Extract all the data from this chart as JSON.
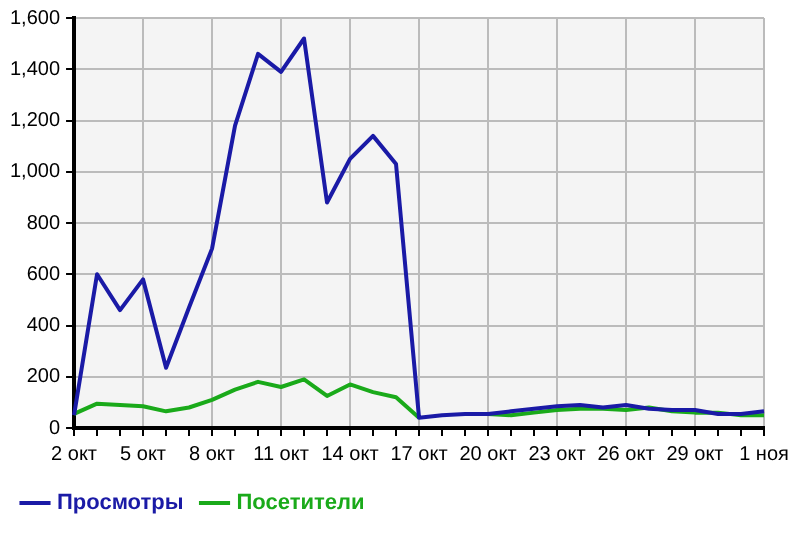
{
  "chart_data": {
    "type": "line",
    "categories": [
      "2 окт",
      null,
      null,
      "5 окт",
      null,
      null,
      "8 окт",
      null,
      null,
      "11 окт",
      null,
      null,
      "14 окт",
      null,
      null,
      "17 окт",
      null,
      null,
      "20 окт",
      null,
      null,
      "23 окт",
      null,
      null,
      "26 окт",
      null,
      null,
      "29 окт",
      null,
      null,
      "1 ноя"
    ],
    "series": [
      {
        "name": "Просмотры",
        "color": "#1a1aa6",
        "values": [
          50,
          600,
          460,
          580,
          235,
          470,
          700,
          1180,
          1460,
          1390,
          1520,
          880,
          1050,
          1140,
          1030,
          40,
          50,
          55,
          55,
          65,
          75,
          85,
          90,
          80,
          90,
          75,
          70,
          70,
          55,
          55,
          65
        ]
      },
      {
        "name": "Посетители",
        "color": "#1aaa1a",
        "values": [
          55,
          95,
          90,
          85,
          65,
          80,
          110,
          150,
          180,
          160,
          190,
          125,
          170,
          140,
          120,
          40,
          null,
          null,
          55,
          50,
          60,
          70,
          75,
          75,
          70,
          80,
          65,
          60,
          60,
          50,
          50
        ]
      }
    ],
    "ylim": [
      0,
      1600
    ],
    "yticks": [
      0,
      200,
      400,
      600,
      800,
      {
        "value": 1000,
        "label": "1,000"
      },
      {
        "value": 1200,
        "label": "1,200"
      },
      {
        "value": 1400,
        "label": "1,400"
      },
      {
        "value": 1600,
        "label": "1,600"
      }
    ],
    "grid": true,
    "legend": "bottom",
    "marker": "none",
    "line_style": "solid"
  }
}
